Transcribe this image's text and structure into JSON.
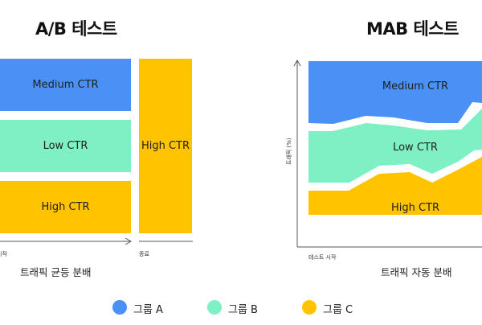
{
  "colors": {
    "group_a": "#4a90f5",
    "group_b": "#7ef0c4",
    "group_c": "#ffc300",
    "axis": "#555555"
  },
  "ab_test": {
    "title": "A/B 테스트",
    "blocks": {
      "medium": "Medium CTR",
      "low": "Low CTR",
      "high": "High CTR",
      "after_end": "High CTR"
    },
    "axis_start_label": "시작",
    "axis_end_label": "종료",
    "caption": "트래픽 균등 분배"
  },
  "mab_test": {
    "title": "MAB 테스트",
    "regions": {
      "a": "Medium CTR",
      "b": "Low CTR",
      "c": "High CTR"
    },
    "y_axis_label": "트래픽 (%)",
    "x_axis_label": "테스트 시작",
    "caption": "트래픽 자동 분배"
  },
  "legend": [
    {
      "label": "그룹 A",
      "color_key": "group_a"
    },
    {
      "label": "그룹 B",
      "color_key": "group_b"
    },
    {
      "label": "그룹 C",
      "color_key": "group_c"
    }
  ]
}
